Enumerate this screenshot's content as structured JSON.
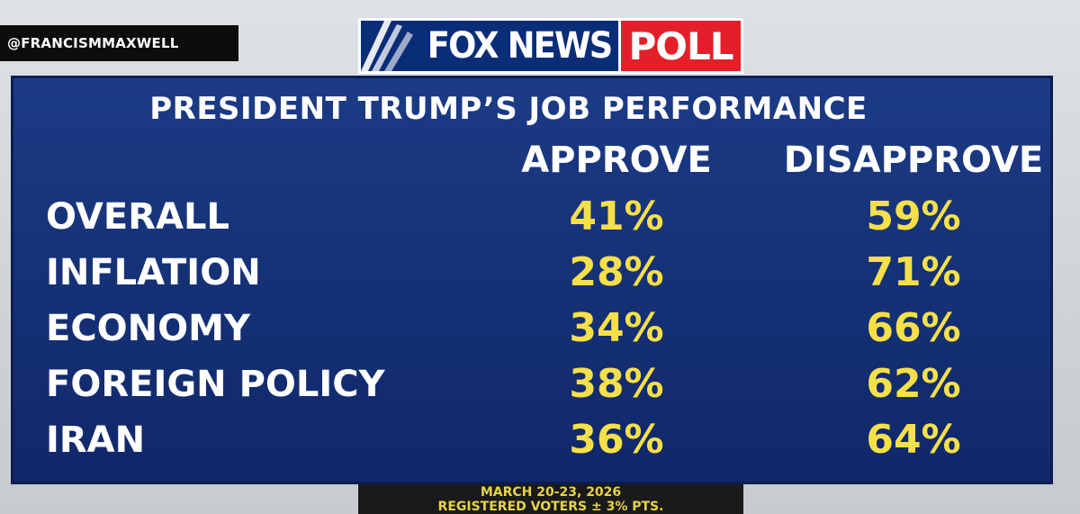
{
  "watermark": "@FRANCISMMAXWELL",
  "logo": {
    "network": "FOX NEWS",
    "tag": "POLL"
  },
  "title": "PRESIDENT TRUMP’S JOB PERFORMANCE",
  "columns": {
    "approve": "APPROVE",
    "disapprove": "DISAPPROVE"
  },
  "rows": [
    {
      "label": "OVERALL",
      "approve": "41%",
      "disapprove": "59%"
    },
    {
      "label": "INFLATION",
      "approve": "28%",
      "disapprove": "71%"
    },
    {
      "label": "ECONOMY",
      "approve": "34%",
      "disapprove": "66%"
    },
    {
      "label": "FOREIGN POLICY",
      "approve": "38%",
      "disapprove": "62%"
    },
    {
      "label": "IRAN",
      "approve": "36%",
      "disapprove": "64%"
    }
  ],
  "footer": {
    "dates": "MARCH 20-23, 2026",
    "sample": "REGISTERED VOTERS ± 3% PTS."
  },
  "colors": {
    "board": "#163277",
    "value": "#f5e04a",
    "poll_red": "#e3202a",
    "fox_blue": "#0a2d78"
  }
}
